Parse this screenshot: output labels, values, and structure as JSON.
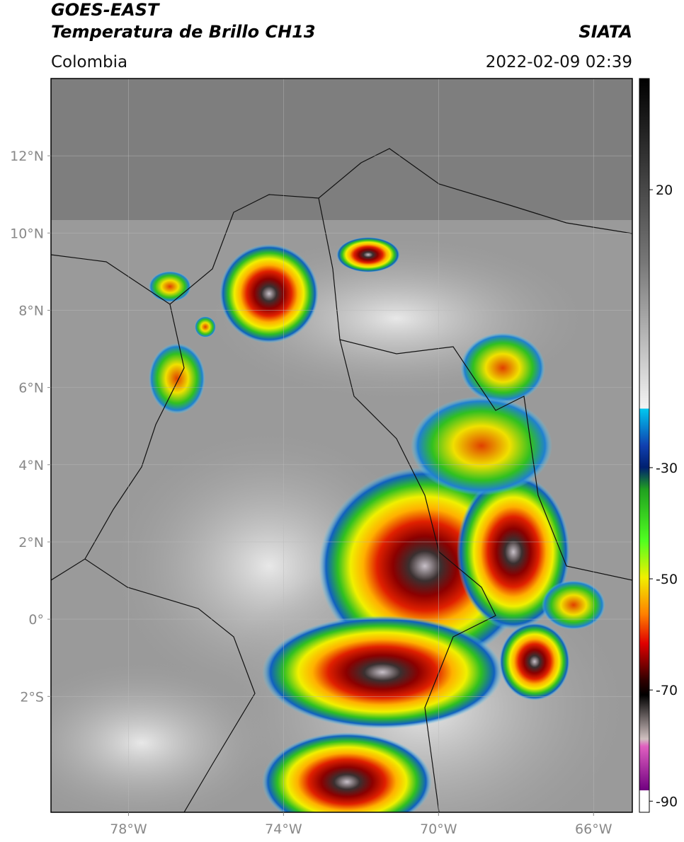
{
  "header": {
    "title": "GOES-EAST",
    "subtitle": "Temperatura de Brillo CH13",
    "source": "SIATA",
    "region": "Colombia",
    "datetime": "2022-02-09 02:39"
  },
  "map": {
    "xlim": [
      -80,
      -65
    ],
    "ylim": [
      -5,
      14
    ],
    "grid": true,
    "xticks": [
      {
        "value": -78,
        "label": "78°W"
      },
      {
        "value": -74,
        "label": "74°W"
      },
      {
        "value": -70,
        "label": "70°W"
      },
      {
        "value": -66,
        "label": "66°W"
      }
    ],
    "yticks": [
      {
        "value": 12,
        "label": "12°N"
      },
      {
        "value": 10,
        "label": "10°N"
      },
      {
        "value": 8,
        "label": "8°N"
      },
      {
        "value": 6,
        "label": "6°N"
      },
      {
        "value": 4,
        "label": "4°N"
      },
      {
        "value": 2,
        "label": "2°N"
      },
      {
        "value": 0,
        "label": "0°"
      },
      {
        "value": -2,
        "label": "2°S"
      }
    ]
  },
  "colorbar": {
    "lim": [
      -92,
      40
    ],
    "ticks": [
      20,
      -30,
      -50,
      -70,
      -90
    ]
  }
}
